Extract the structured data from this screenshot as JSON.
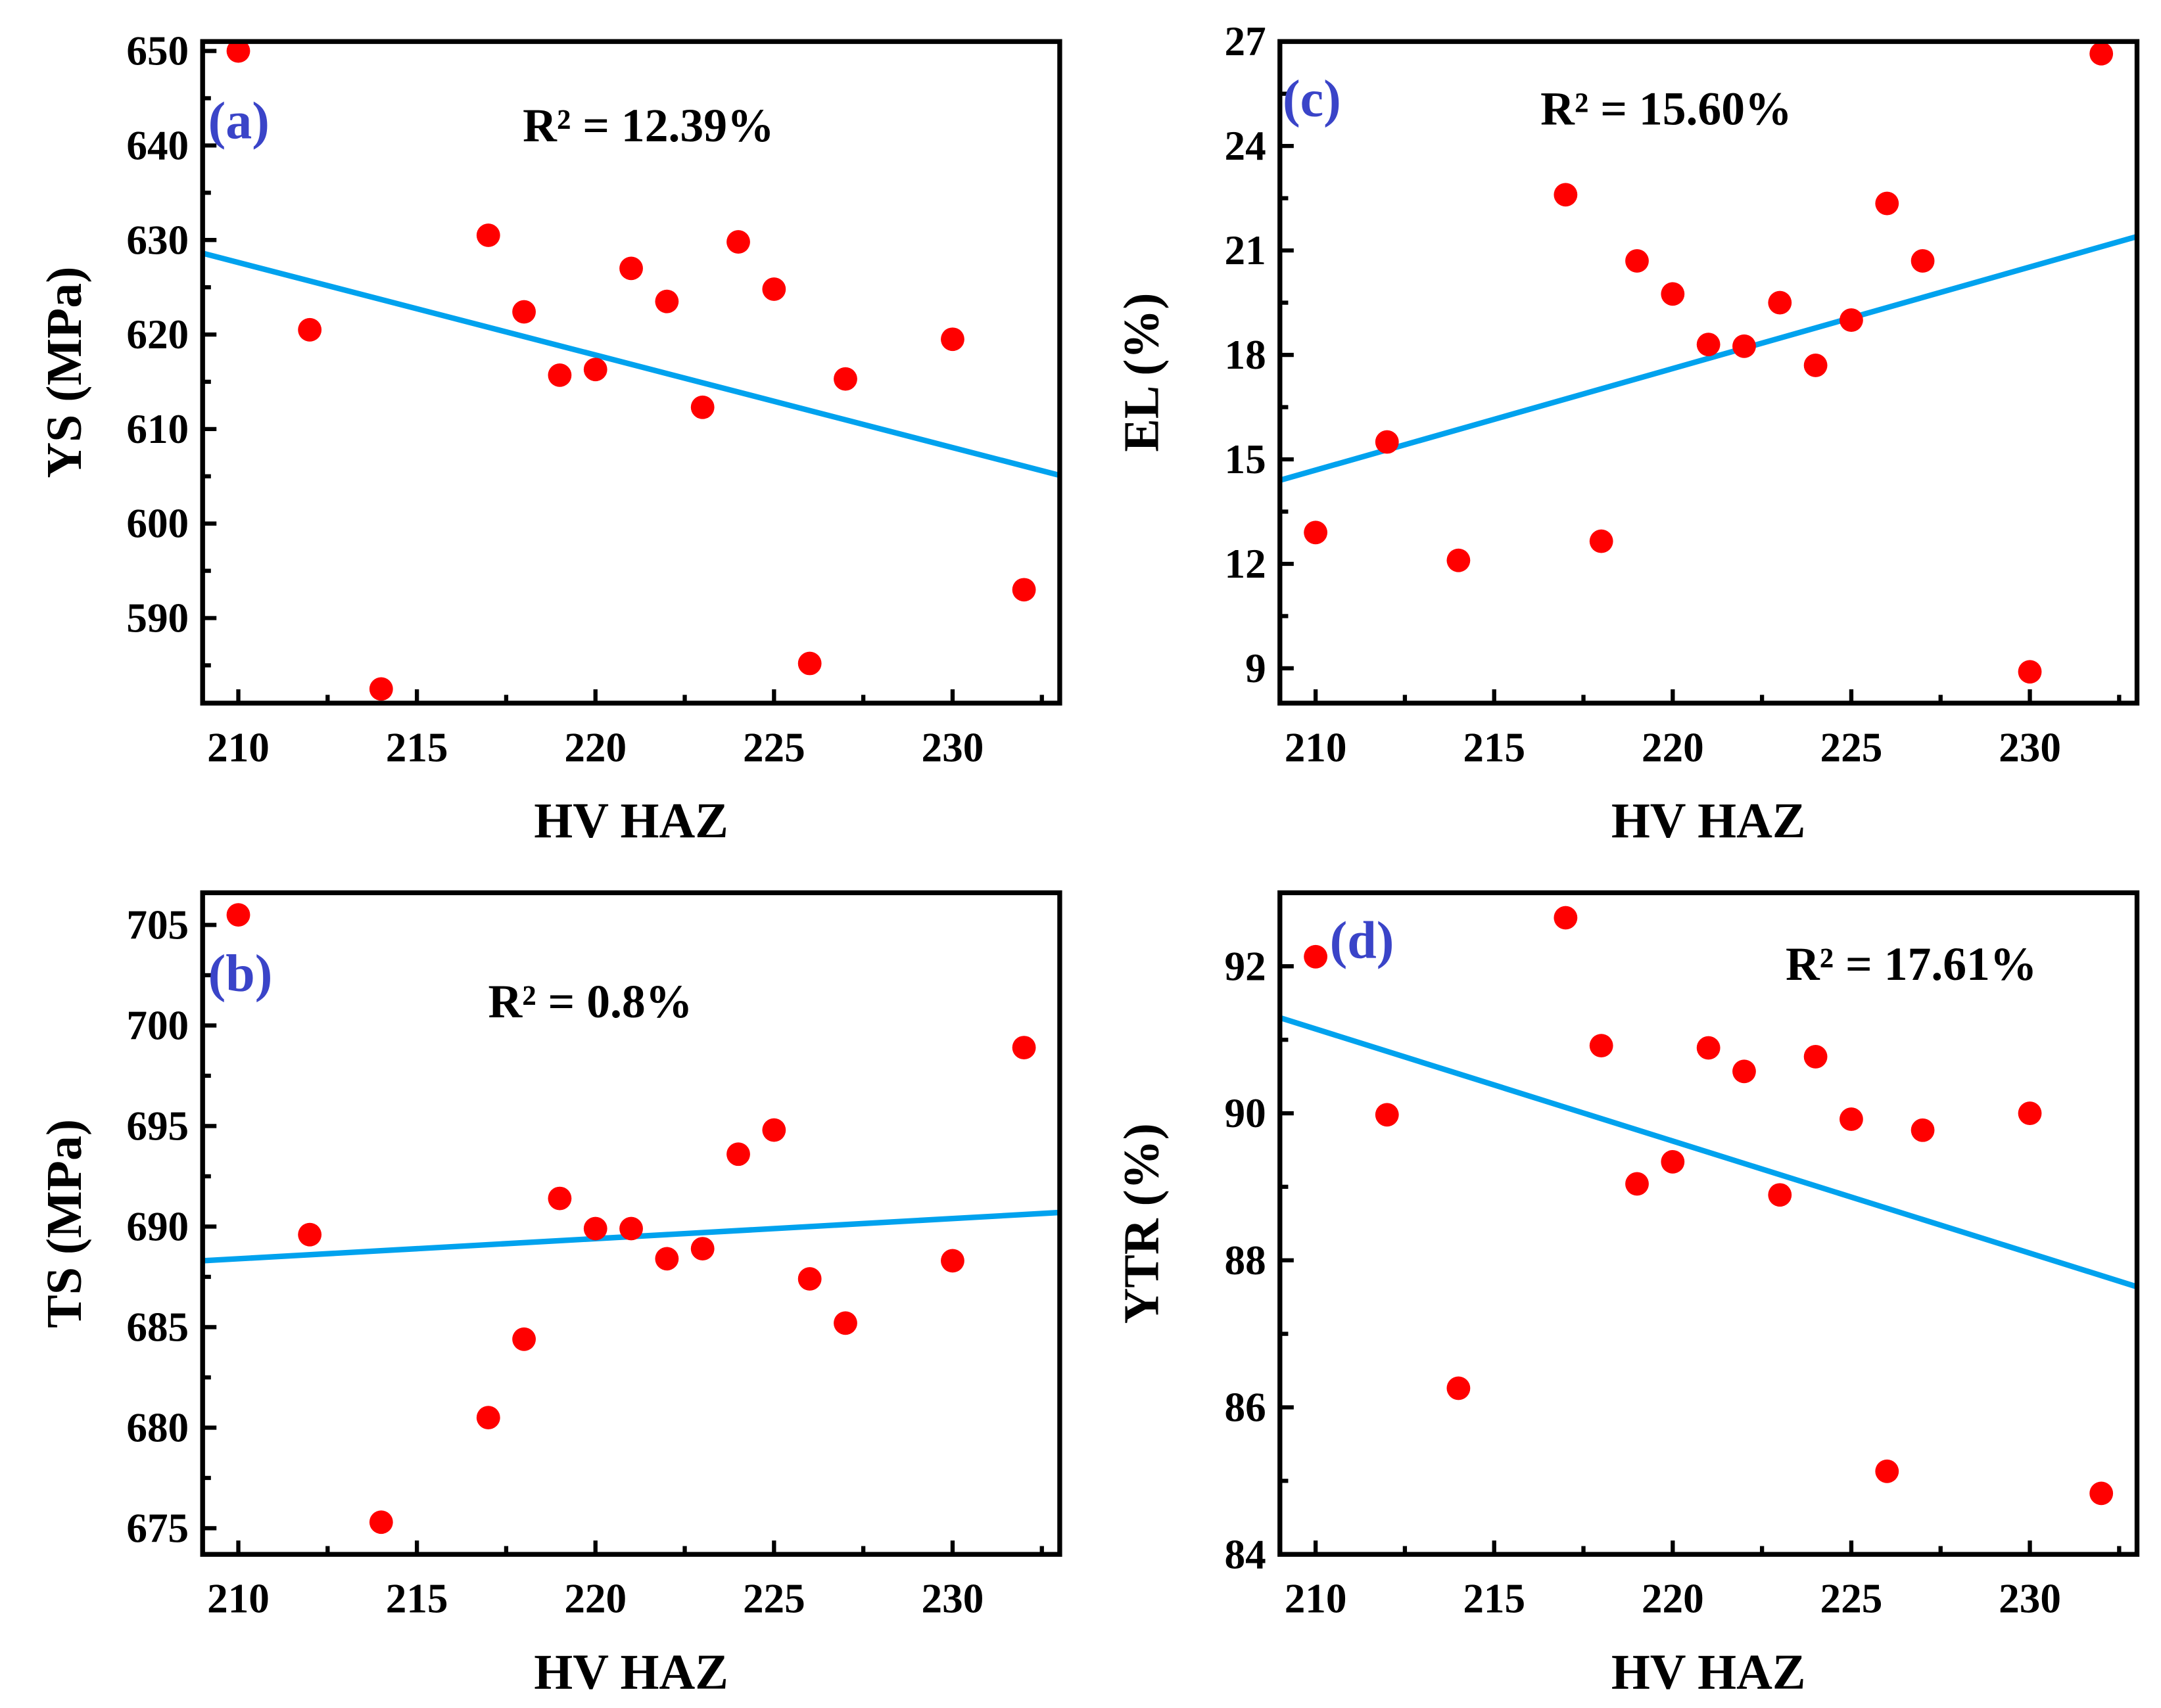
{
  "colors": {
    "point": "#ff0000",
    "fit_line": "#00a2ee",
    "panel_label": "#3a44c8",
    "axis": "#000000"
  },
  "chart_data": [
    {
      "type": "scatter",
      "panel": "(a)",
      "annotation": "R² = 12.39%",
      "xlabel": "HV HAZ",
      "ylabel": "YS (MPa)",
      "xlim": [
        209,
        233
      ],
      "ylim": [
        581,
        651
      ],
      "xticks": [
        210,
        215,
        220,
        225,
        230
      ],
      "yticks": [
        590,
        600,
        610,
        620,
        630,
        640,
        650
      ],
      "x": [
        210,
        212,
        214,
        217,
        218,
        219,
        220,
        221,
        222,
        223,
        224,
        225,
        226,
        227,
        230,
        232
      ],
      "y": [
        650,
        620.5,
        582.5,
        630.5,
        622.4,
        615.7,
        616.3,
        627,
        623.5,
        612.3,
        629.8,
        624.8,
        585.2,
        615.3,
        619.5,
        593
      ],
      "fit": {
        "x": [
          209,
          233
        ],
        "y": [
          628.6,
          605.1
        ]
      }
    },
    {
      "type": "scatter",
      "panel": "(b)",
      "annotation": "R² = 0.8%",
      "xlabel": "HV HAZ",
      "ylabel": "TS (MPa)",
      "xlim": [
        209,
        233
      ],
      "ylim": [
        673.7,
        706.6
      ],
      "xticks": [
        210,
        215,
        220,
        225,
        230
      ],
      "yticks": [
        675,
        680,
        685,
        690,
        695,
        700,
        705
      ],
      "x": [
        210,
        212,
        214,
        217,
        218,
        219,
        220,
        221,
        222,
        223,
        224,
        225,
        226,
        227,
        230,
        232
      ],
      "y": [
        705.5,
        689.6,
        675.3,
        680.5,
        684.4,
        691.4,
        689.9,
        689.9,
        688.4,
        688.9,
        693.6,
        694.8,
        687.4,
        685.2,
        688.3,
        698.9
      ],
      "fit": {
        "x": [
          209,
          233
        ],
        "y": [
          688.3,
          690.7
        ]
      }
    },
    {
      "type": "scatter",
      "panel": "(c)",
      "annotation": "R² = 15.60%",
      "xlabel": "HV HAZ",
      "ylabel": "EL (%)",
      "xlim": [
        209,
        233
      ],
      "ylim": [
        8,
        27
      ],
      "xticks": [
        210,
        215,
        220,
        225,
        230
      ],
      "yticks": [
        9,
        12,
        15,
        18,
        21,
        24,
        27
      ],
      "x": [
        210,
        212,
        214,
        217,
        218,
        219,
        220,
        221,
        222,
        223,
        224,
        225,
        226,
        227,
        230,
        232
      ],
      "y": [
        12.9,
        15.5,
        12.1,
        22.6,
        12.65,
        20.7,
        19.75,
        18.3,
        18.25,
        19.5,
        17.7,
        19.0,
        22.35,
        20.7,
        8.9,
        26.65
      ],
      "fit": {
        "x": [
          209,
          233
        ],
        "y": [
          14.4,
          21.4
        ]
      }
    },
    {
      "type": "scatter",
      "panel": "(d)",
      "annotation": "R² = 17.61%",
      "xlabel": "HV HAZ",
      "ylabel": "YTR (%)",
      "xlim": [
        209,
        233
      ],
      "ylim": [
        84,
        93
      ],
      "xticks": [
        210,
        215,
        220,
        225,
        230
      ],
      "yticks": [
        84,
        86,
        88,
        90,
        92
      ],
      "x": [
        210,
        212,
        214,
        217,
        218,
        219,
        220,
        221,
        222,
        223,
        224,
        225,
        226,
        227,
        230,
        232
      ],
      "y": [
        92.13,
        89.98,
        86.26,
        92.66,
        90.92,
        89.04,
        89.34,
        90.89,
        90.57,
        88.89,
        90.77,
        89.92,
        85.13,
        89.77,
        90.0,
        84.83
      ],
      "fit": {
        "x": [
          209,
          233
        ],
        "y": [
          91.3,
          87.64
        ]
      }
    }
  ]
}
